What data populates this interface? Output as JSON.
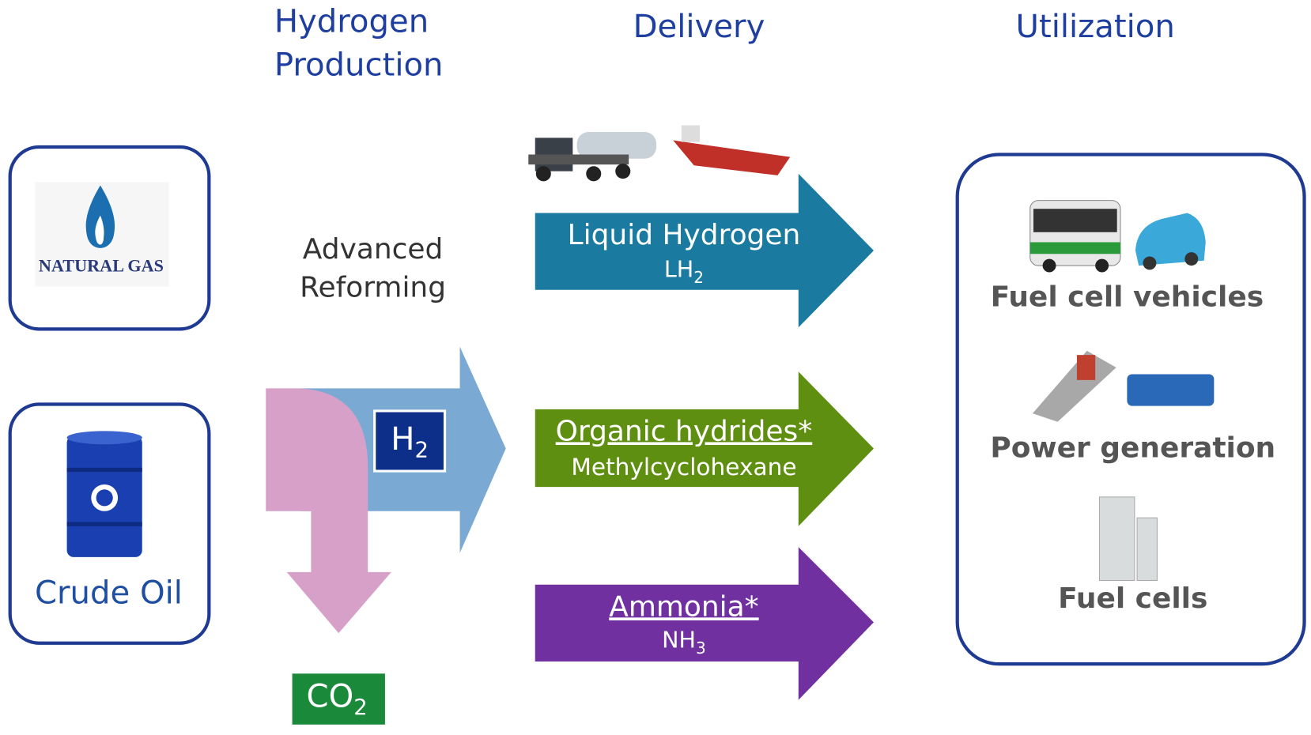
{
  "headers": {
    "production": [
      "Hydrogen",
      "Production"
    ],
    "delivery": "Delivery",
    "utilization": "Utilization"
  },
  "sources": {
    "natural_gas": "NATURAL GAS",
    "crude_oil": "Crude Oil"
  },
  "process": [
    "Advanced",
    "Reforming"
  ],
  "products": {
    "h2": {
      "base": "H",
      "sub": "2"
    },
    "co2": {
      "base": "CO",
      "sub": "2"
    }
  },
  "carriers": [
    {
      "name": "Liquid Hydrogen",
      "formula": {
        "base": "LH",
        "sub": "2"
      }
    },
    {
      "name": "Organic hydrides*",
      "formula": {
        "base": "Methylcyclohexane",
        "sub": ""
      }
    },
    {
      "name": "Ammonia*",
      "formula": {
        "base": "NH",
        "sub": "3"
      }
    }
  ],
  "uses": [
    "Fuel cell vehicles",
    "Power generation",
    "Fuel cells"
  ]
}
